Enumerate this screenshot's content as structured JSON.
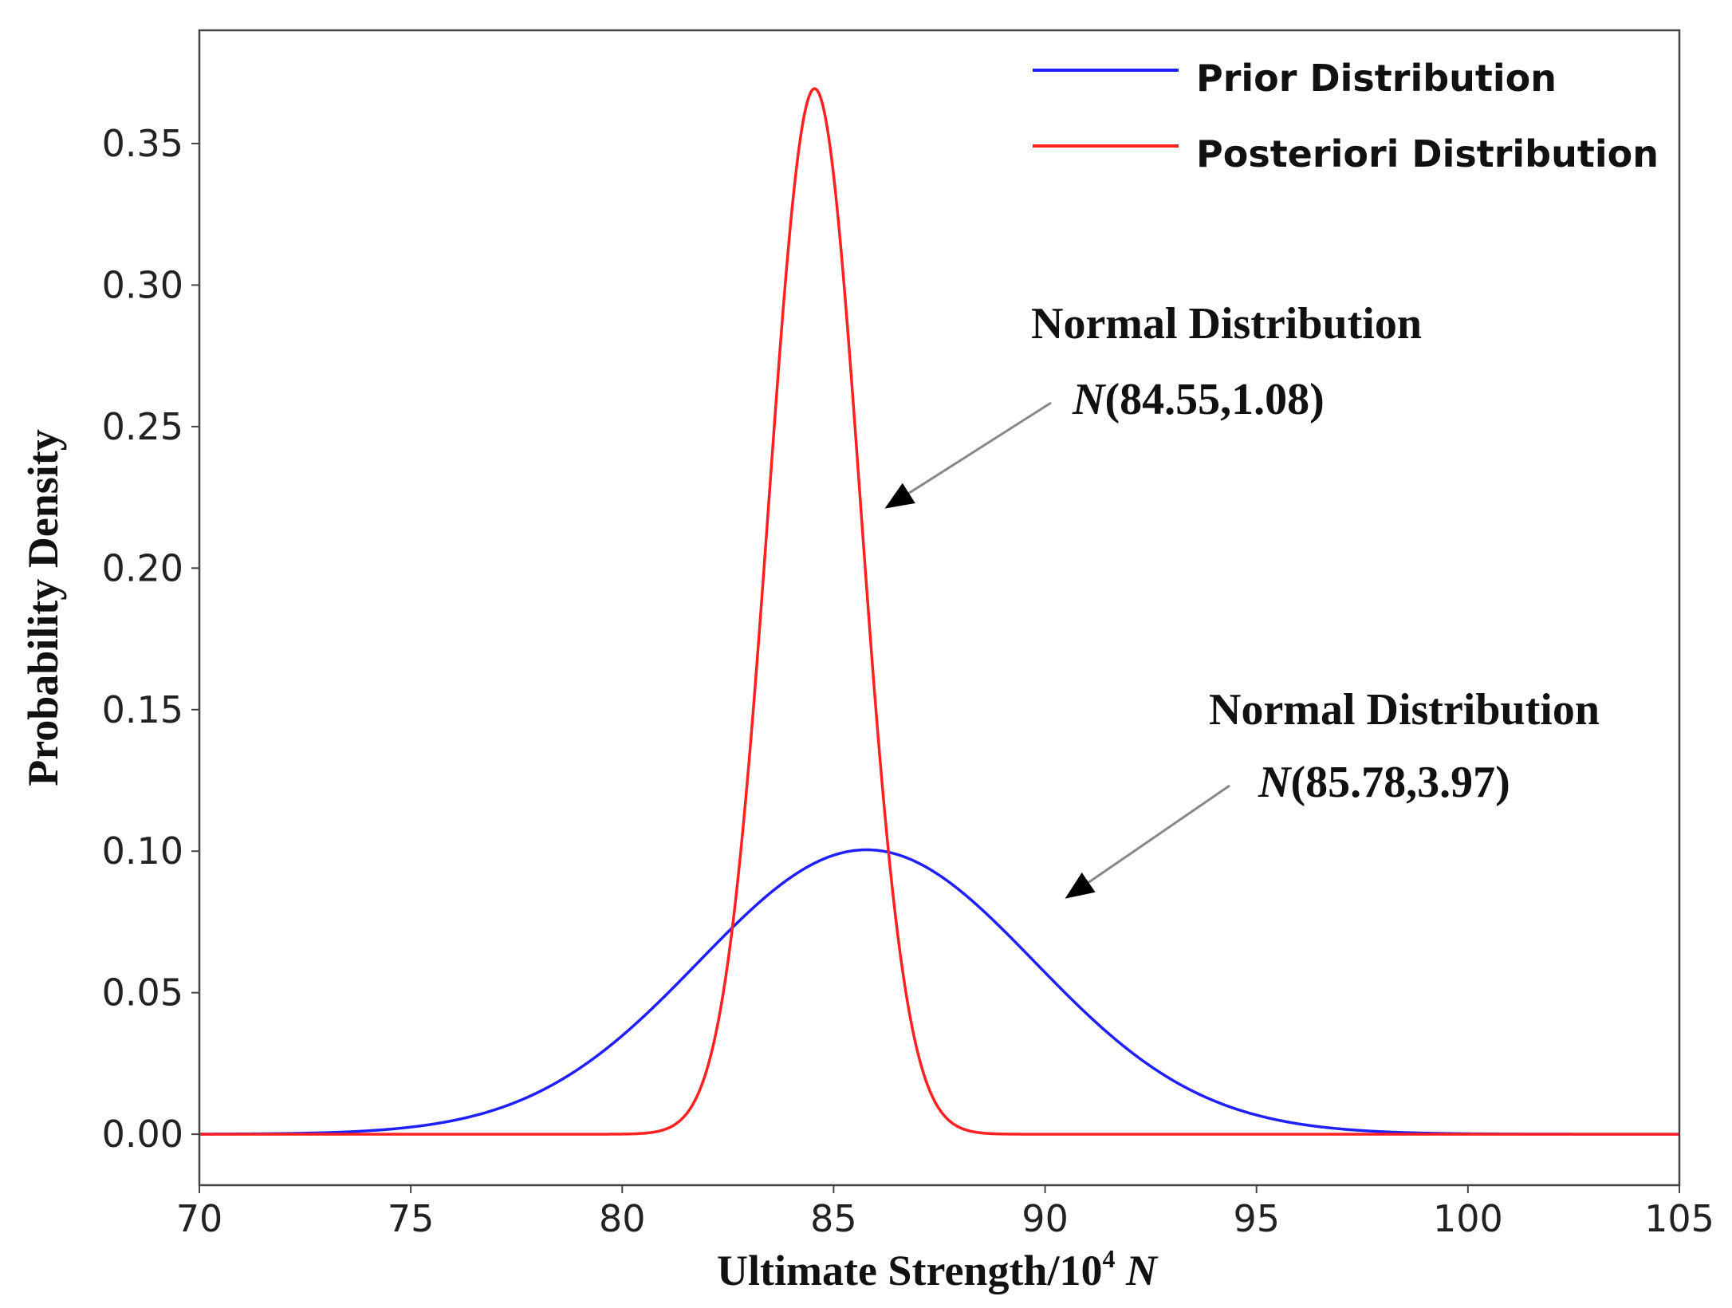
{
  "chart_data": {
    "type": "line",
    "title": "",
    "xlabel": "Ultimate Strength/10",
    "xlabel_sup": "4",
    "xlabel_unit": "N",
    "ylabel": "Probability Density",
    "xlim": [
      70,
      105
    ],
    "ylim": [
      -0.018,
      0.39
    ],
    "xticks": [
      70,
      75,
      80,
      85,
      90,
      95,
      100,
      105
    ],
    "xtick_labels": [
      "70",
      "75",
      "80",
      "85",
      "90",
      "95",
      "100",
      "105"
    ],
    "yticks": [
      0.0,
      0.05,
      0.1,
      0.15,
      0.2,
      0.25,
      0.3,
      0.35
    ],
    "ytick_labels": [
      "0.00",
      "0.05",
      "0.10",
      "0.15",
      "0.20",
      "0.25",
      "0.30",
      "0.35"
    ],
    "grid": false,
    "legend_position": "top-right",
    "series": [
      {
        "name": "Prior Distribution",
        "distribution": "normal",
        "mean": 85.78,
        "sd": 3.97,
        "color": "#1f1fff"
      },
      {
        "name": "Posteriori Distribution",
        "distribution": "normal",
        "mean": 84.55,
        "sd": 1.08,
        "color": "#ff2020"
      }
    ],
    "annotations": [
      {
        "heading": "Normal Distribution",
        "label_prefix": "N",
        "label_params": "(84.55,1.08)",
        "points_to": "Posteriori Distribution"
      },
      {
        "heading": "Normal Distribution",
        "label_prefix": "N",
        "label_params": "(85.78,3.97)",
        "points_to": "Prior Distribution"
      }
    ]
  }
}
